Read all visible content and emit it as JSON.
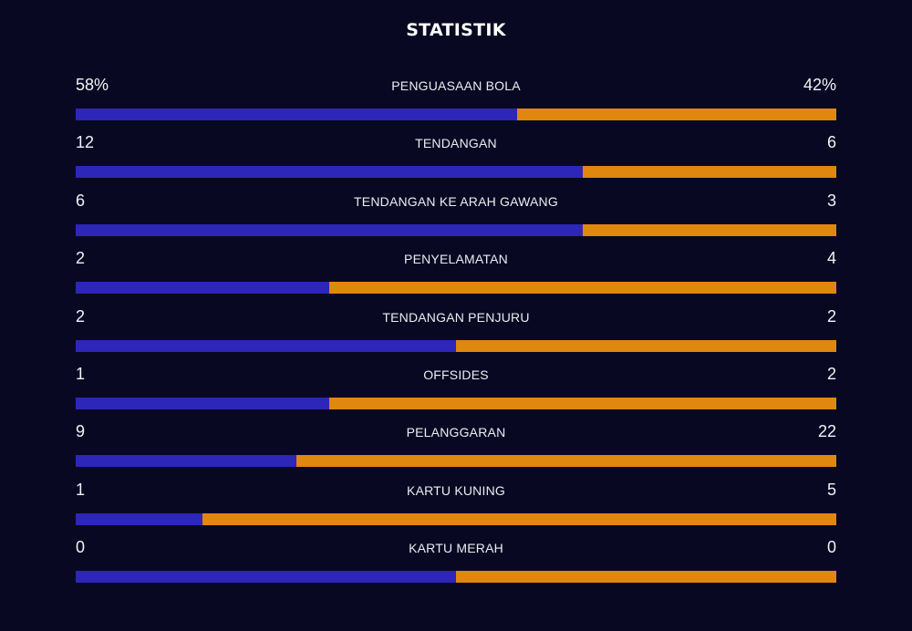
{
  "title": "STATISTIK",
  "colors": {
    "background": "#090822",
    "home": "#2d26b8",
    "away": "#e0870f"
  },
  "stats": [
    {
      "label": "PENGUASAAN BOLA",
      "home": "58%",
      "away": "42%",
      "home_share": 0.58
    },
    {
      "label": "TENDANGAN",
      "home": "12",
      "away": "6",
      "home_share": 0.6667
    },
    {
      "label": "TENDANGAN KE ARAH GAWANG",
      "home": "6",
      "away": "3",
      "home_share": 0.6667
    },
    {
      "label": "PENYELAMATAN",
      "home": "2",
      "away": "4",
      "home_share": 0.3333
    },
    {
      "label": "TENDANGAN PENJURU",
      "home": "2",
      "away": "2",
      "home_share": 0.5
    },
    {
      "label": "OFFSIDES",
      "home": "1",
      "away": "2",
      "home_share": 0.3333
    },
    {
      "label": "PELANGGARAN",
      "home": "9",
      "away": "22",
      "home_share": 0.2903
    },
    {
      "label": "KARTU KUNING",
      "home": "1",
      "away": "5",
      "home_share": 0.1667
    },
    {
      "label": "KARTU MERAH",
      "home": "0",
      "away": "0",
      "home_share": 0.5
    }
  ]
}
